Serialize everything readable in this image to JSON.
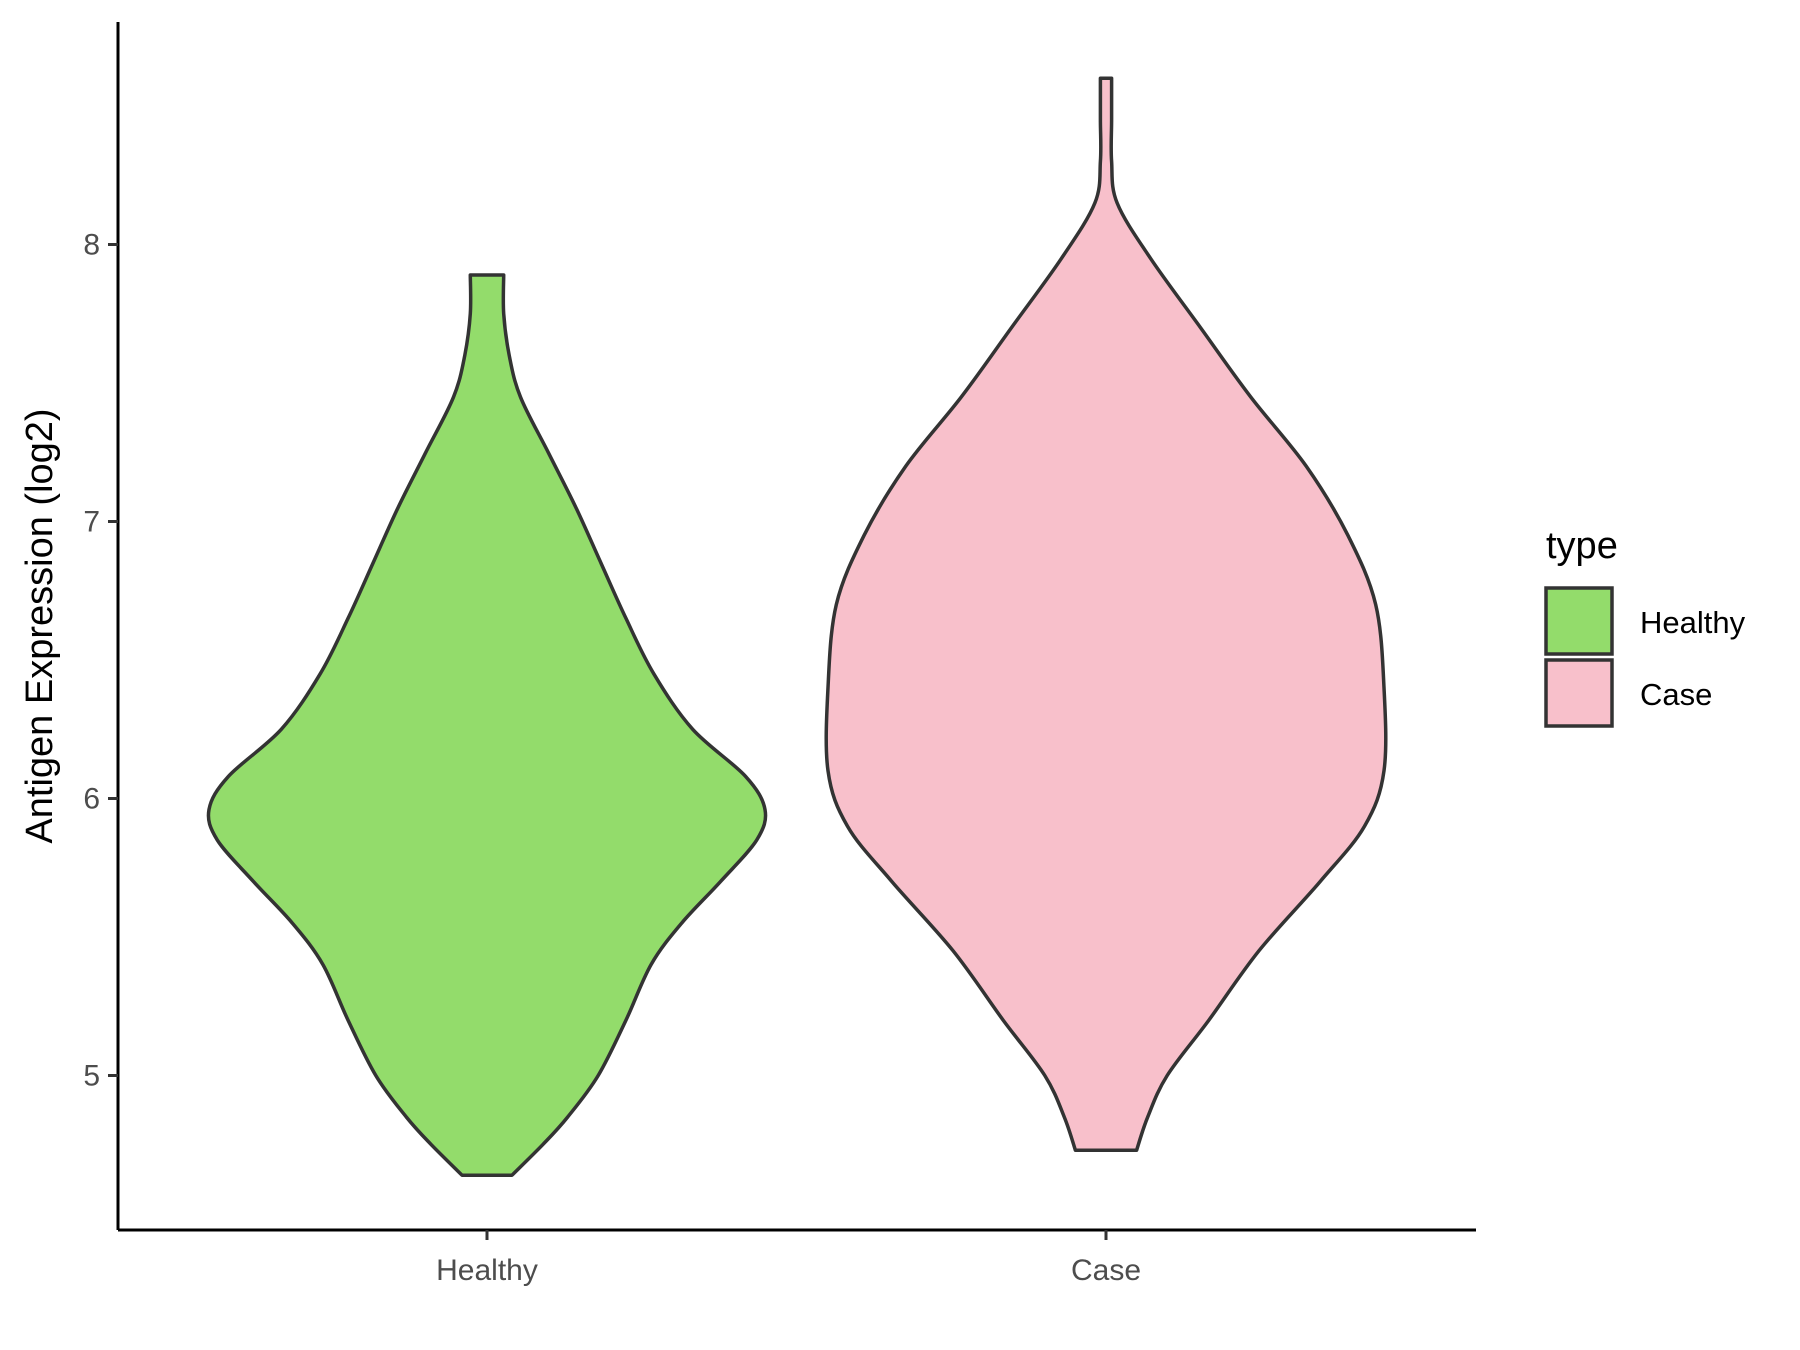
{
  "chart_data": {
    "type": "violin",
    "title": "",
    "xlabel": "",
    "ylabel": "Antigen Expression (log2)",
    "ylim": [
      4.45,
      8.8
    ],
    "yticks": [
      5,
      6,
      7,
      8
    ],
    "ytick_labels": [
      "5",
      "6",
      "7",
      "8"
    ],
    "categories": [
      "Healthy",
      "Case"
    ],
    "grid": false,
    "legend": {
      "title": "type",
      "position": "right",
      "entries": [
        {
          "label": "Healthy",
          "color": "#93dc6b"
        },
        {
          "label": "Case",
          "color": "#f8c0cb"
        }
      ]
    },
    "outline_color": "#333333",
    "series": [
      {
        "category": "Healthy",
        "color": "#93dc6b",
        "min": 4.64,
        "max": 7.89,
        "density": [
          [
            4.64,
            0.09
          ],
          [
            4.75,
            0.2
          ],
          [
            4.85,
            0.29
          ],
          [
            5.0,
            0.4
          ],
          [
            5.2,
            0.5
          ],
          [
            5.4,
            0.59
          ],
          [
            5.55,
            0.7
          ],
          [
            5.7,
            0.84
          ],
          [
            5.85,
            0.97
          ],
          [
            5.96,
            1.0
          ],
          [
            6.08,
            0.93
          ],
          [
            6.25,
            0.74
          ],
          [
            6.45,
            0.6
          ],
          [
            6.65,
            0.5
          ],
          [
            6.85,
            0.41
          ],
          [
            7.05,
            0.32
          ],
          [
            7.25,
            0.22
          ],
          [
            7.45,
            0.12
          ],
          [
            7.6,
            0.08
          ],
          [
            7.75,
            0.06
          ],
          [
            7.89,
            0.06
          ]
        ]
      },
      {
        "category": "Case",
        "color": "#f8c0cb",
        "min": 4.73,
        "max": 8.6,
        "density": [
          [
            4.73,
            0.11
          ],
          [
            4.85,
            0.15
          ],
          [
            5.0,
            0.22
          ],
          [
            5.2,
            0.37
          ],
          [
            5.45,
            0.55
          ],
          [
            5.7,
            0.77
          ],
          [
            5.9,
            0.93
          ],
          [
            6.1,
            1.0
          ],
          [
            6.4,
            1.0
          ],
          [
            6.7,
            0.97
          ],
          [
            6.95,
            0.87
          ],
          [
            7.2,
            0.72
          ],
          [
            7.45,
            0.52
          ],
          [
            7.7,
            0.34
          ],
          [
            7.95,
            0.16
          ],
          [
            8.15,
            0.04
          ],
          [
            8.3,
            0.02
          ],
          [
            8.45,
            0.02
          ],
          [
            8.6,
            0.02
          ]
        ]
      }
    ]
  }
}
